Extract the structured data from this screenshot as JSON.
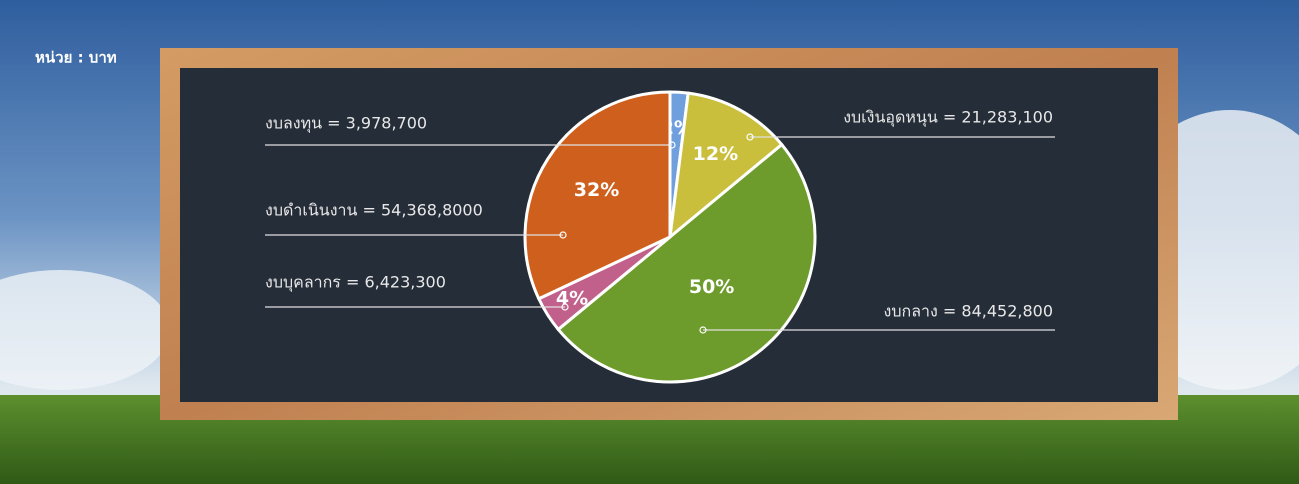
{
  "chart_data": {
    "type": "pie",
    "unit_label": "หน่วย : บาท",
    "categories": [
      "งบลงทุน = 3,978,700",
      "งบเงินอุดหนุน = 21,283,100",
      "งบกลาง = 84,452,800",
      "งบบุคลากร = 6,423,300",
      "งบดำเนินงาน = 54,368,8000"
    ],
    "values": [
      2,
      12,
      50,
      4,
      32
    ],
    "value_labels": [
      "2%",
      "12%",
      "50%",
      "4%",
      "32%"
    ],
    "colors": [
      "#6f9fdc",
      "#c9bf3c",
      "#6e9c2c",
      "#c2608c",
      "#cf5f1c"
    ]
  }
}
